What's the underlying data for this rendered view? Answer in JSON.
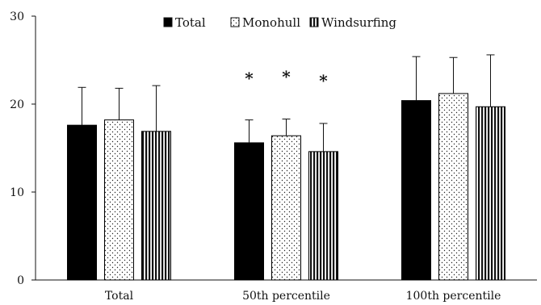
{
  "chart_data": {
    "type": "bar",
    "title": "",
    "xlabel": "",
    "ylabel": "",
    "ylim": [
      0,
      30
    ],
    "yticks": [
      0,
      10,
      20,
      30
    ],
    "grid": false,
    "legend_position": "top",
    "categories": [
      "Total",
      "50th percentile",
      "100th percentile"
    ],
    "series": [
      {
        "name": "Total",
        "pattern": "solid",
        "values": [
          17.6,
          15.6,
          20.4
        ],
        "errors": [
          4.3,
          2.6,
          5.0
        ]
      },
      {
        "name": "Monohull",
        "pattern": "dots",
        "values": [
          18.2,
          16.4,
          21.2
        ],
        "errors": [
          3.6,
          1.9,
          4.1
        ]
      },
      {
        "name": "Windsurfing",
        "pattern": "vertical-lines",
        "values": [
          16.9,
          14.6,
          19.7
        ],
        "errors": [
          5.2,
          3.2,
          5.9
        ]
      }
    ],
    "annotations": [
      {
        "text": "*",
        "category": "50th percentile",
        "series": "Total",
        "value": 23.4
      },
      {
        "text": "*",
        "category": "50th percentile",
        "series": "Monohull",
        "value": 23.6
      },
      {
        "text": "*",
        "category": "50th percentile",
        "series": "Windsurfing",
        "value": 23.1
      }
    ],
    "colors": {
      "bar_fill": "#000000",
      "bar_outline": "#000000",
      "background": "#ffffff"
    }
  }
}
